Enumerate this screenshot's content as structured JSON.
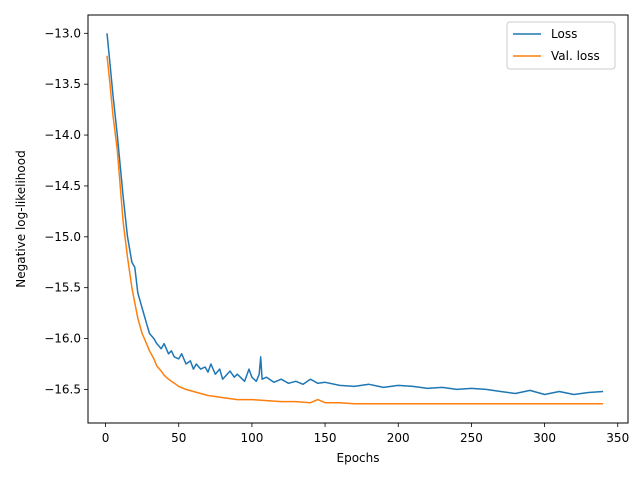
{
  "chart_data": {
    "type": "line",
    "title": "",
    "xlabel": "Epochs",
    "ylabel": "Negative log-likelihood",
    "xlim": [
      -12,
      357
    ],
    "ylim": [
      -16.83,
      -12.82
    ],
    "xticks": [
      0,
      50,
      100,
      150,
      200,
      250,
      300,
      350
    ],
    "xtick_labels": [
      "0",
      "50",
      "100",
      "150",
      "200",
      "250",
      "300",
      "350"
    ],
    "yticks": [
      -13.0,
      -13.5,
      -14.0,
      -14.5,
      -15.0,
      -15.5,
      -16.0,
      -16.5
    ],
    "ytick_labels": [
      "−13.0",
      "−13.5",
      "−14.0",
      "−14.5",
      "−15.0",
      "−15.5",
      "−16.0",
      "−16.5"
    ],
    "grid": false,
    "legend_position": "top-right",
    "series": [
      {
        "name": "Loss",
        "color": "#1f77b4",
        "x": [
          1,
          3,
          5,
          8,
          10,
          12,
          15,
          18,
          20,
          22,
          25,
          28,
          30,
          33,
          35,
          38,
          40,
          43,
          45,
          47,
          50,
          52,
          55,
          58,
          60,
          62,
          65,
          68,
          70,
          72,
          75,
          78,
          80,
          85,
          88,
          90,
          95,
          98,
          100,
          103,
          105,
          106,
          107,
          110,
          115,
          120,
          125,
          130,
          135,
          140,
          145,
          150,
          160,
          170,
          180,
          190,
          200,
          210,
          220,
          230,
          240,
          250,
          260,
          270,
          280,
          290,
          300,
          310,
          320,
          330,
          340
        ],
        "y": [
          -13.0,
          -13.3,
          -13.6,
          -14.0,
          -14.3,
          -14.6,
          -15.0,
          -15.25,
          -15.3,
          -15.55,
          -15.7,
          -15.85,
          -15.95,
          -16.0,
          -16.05,
          -16.1,
          -16.05,
          -16.15,
          -16.12,
          -16.18,
          -16.2,
          -16.15,
          -16.25,
          -16.22,
          -16.3,
          -16.25,
          -16.3,
          -16.28,
          -16.33,
          -16.25,
          -16.35,
          -16.3,
          -16.4,
          -16.32,
          -16.38,
          -16.35,
          -16.42,
          -16.3,
          -16.38,
          -16.42,
          -16.35,
          -16.18,
          -16.4,
          -16.38,
          -16.43,
          -16.4,
          -16.44,
          -16.42,
          -16.45,
          -16.4,
          -16.44,
          -16.43,
          -16.46,
          -16.47,
          -16.45,
          -16.48,
          -16.46,
          -16.47,
          -16.49,
          -16.48,
          -16.5,
          -16.49,
          -16.5,
          -16.52,
          -16.54,
          -16.51,
          -16.55,
          -16.52,
          -16.55,
          -16.53,
          -16.52
        ]
      },
      {
        "name": "Val. loss",
        "color": "#ff7f0e",
        "x": [
          1,
          3,
          5,
          8,
          10,
          12,
          15,
          18,
          20,
          22,
          25,
          28,
          30,
          33,
          35,
          38,
          40,
          43,
          45,
          48,
          50,
          55,
          60,
          65,
          70,
          75,
          80,
          90,
          100,
          110,
          120,
          130,
          140,
          145,
          150,
          160,
          170,
          180,
          190,
          200,
          210,
          220,
          230,
          240,
          250,
          260,
          270,
          280,
          290,
          300,
          310,
          320,
          330,
          340
        ],
        "y": [
          -13.22,
          -13.5,
          -13.8,
          -14.15,
          -14.5,
          -14.85,
          -15.2,
          -15.5,
          -15.65,
          -15.8,
          -15.95,
          -16.05,
          -16.12,
          -16.2,
          -16.27,
          -16.32,
          -16.36,
          -16.4,
          -16.42,
          -16.45,
          -16.47,
          -16.5,
          -16.52,
          -16.54,
          -16.56,
          -16.57,
          -16.58,
          -16.6,
          -16.6,
          -16.61,
          -16.62,
          -16.62,
          -16.63,
          -16.6,
          -16.63,
          -16.63,
          -16.64,
          -16.64,
          -16.64,
          -16.64,
          -16.64,
          -16.64,
          -16.64,
          -16.64,
          -16.64,
          -16.64,
          -16.64,
          -16.64,
          -16.64,
          -16.64,
          -16.64,
          -16.64,
          -16.64,
          -16.64
        ]
      }
    ]
  }
}
